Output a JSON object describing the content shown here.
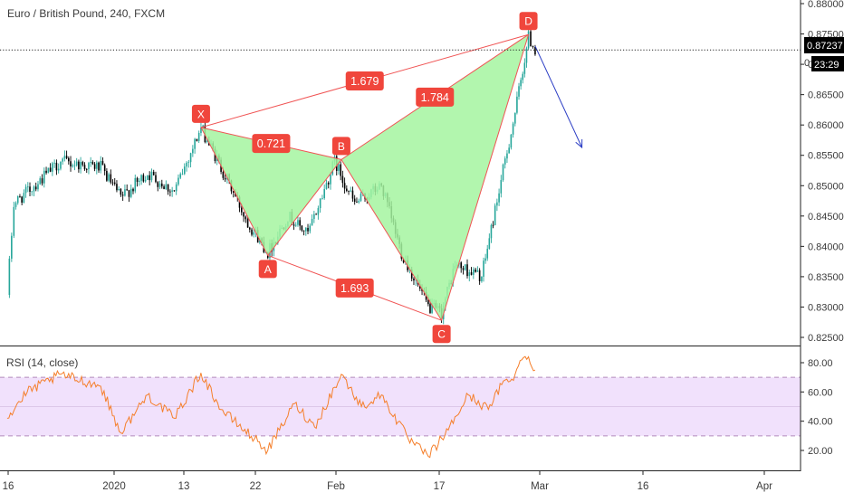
{
  "header": {
    "symbol_title": "Euro / British Pound, 240, FXCM",
    "rsi_title": "RSI (14, close)"
  },
  "price_axis": {
    "ticks": [
      "0.88000",
      "0.87500",
      "0.87000",
      "0.86500",
      "0.86000",
      "0.85500",
      "0.85000",
      "0.84500",
      "0.84000",
      "0.83500",
      "0.83000",
      "0.82500"
    ],
    "last_price": "0.87237",
    "countdown": "23:29",
    "partial_label": "0"
  },
  "rsi_axis": {
    "ticks": [
      "80.00",
      "60.00",
      "40.00",
      "20.00"
    ]
  },
  "time_axis": {
    "ticks": [
      "16",
      "2020",
      "13",
      "22",
      "Feb",
      "17",
      "Mar",
      "16",
      "Apr"
    ]
  },
  "colors": {
    "up": "#26a69a",
    "down": "#000000",
    "pattern_line": "#f05454",
    "pattern_fill": "#a5f5a0",
    "label_bg": "#f0463c",
    "label_text": "#ffffff",
    "rsi_line": "#f57f2b",
    "rsi_band": "#f1e1fc",
    "projection_arrow": "#2a3cc4",
    "axis_text": "#3b3b3b"
  },
  "chart_data": [
    {
      "type": "candlestick",
      "title": "Euro / British Pound, 240, FXCM",
      "ylim": [
        0.8235,
        0.8805
      ],
      "x_ticks": [
        "16",
        "2020",
        "13",
        "22",
        "Feb",
        "17",
        "Mar",
        "16",
        "Apr"
      ],
      "price_path": [
        {
          "x": "Dec 16",
          "y": 0.832
        },
        {
          "x": "Dec 17",
          "y": 0.847
        },
        {
          "x": "Dec 20",
          "y": 0.85
        },
        {
          "x": "Dec 24",
          "y": 0.854
        },
        {
          "x": "Dec 30",
          "y": 0.853
        },
        {
          "x": "Jan 2",
          "y": 0.848
        },
        {
          "x": "Jan 6",
          "y": 0.852
        },
        {
          "x": "Jan 10",
          "y": 0.849
        },
        {
          "x": "Jan 14",
          "y": 0.8595
        },
        {
          "x": "Jan 17",
          "y": 0.853
        },
        {
          "x": "Jan 21",
          "y": 0.844
        },
        {
          "x": "Jan 24",
          "y": 0.839
        },
        {
          "x": "Jan 27",
          "y": 0.845
        },
        {
          "x": "Jan 30",
          "y": 0.842
        },
        {
          "x": "Feb 3",
          "y": 0.854
        },
        {
          "x": "Feb 6",
          "y": 0.847
        },
        {
          "x": "Feb 10",
          "y": 0.85
        },
        {
          "x": "Feb 13",
          "y": 0.839
        },
        {
          "x": "Feb 17",
          "y": 0.83
        },
        {
          "x": "Feb 19",
          "y": 0.829
        },
        {
          "x": "Feb 21",
          "y": 0.837
        },
        {
          "x": "Feb 25",
          "y": 0.835
        },
        {
          "x": "Feb 27",
          "y": 0.846
        },
        {
          "x": "Mar 1",
          "y": 0.862
        },
        {
          "x": "Mar 3",
          "y": 0.8745
        },
        {
          "x": "Mar 4",
          "y": 0.8724
        }
      ],
      "pattern_points": [
        {
          "label": "X",
          "x": "Jan 14",
          "y": 0.8596
        },
        {
          "label": "A",
          "x": "Jan 24",
          "y": 0.8385
        },
        {
          "label": "B",
          "x": "Feb 4",
          "y": 0.8543
        },
        {
          "label": "C",
          "x": "Feb 19",
          "y": 0.8278
        },
        {
          "label": "D",
          "x": "Mar 3",
          "y": 0.8749
        }
      ],
      "ratios": [
        "0.721",
        "1.679",
        "1.693",
        "1.784"
      ],
      "last_price": 0.87237,
      "projection": {
        "from": {
          "x": "Mar 4",
          "y": 0.873
        },
        "to": {
          "x": "Mar 11",
          "y": 0.8563
        }
      }
    },
    {
      "type": "line",
      "title": "RSI (14, close)",
      "ylim": [
        10,
        88
      ],
      "reference_lines": [
        30,
        70
      ],
      "series": [
        {
          "name": "RSI (14, close)",
          "points": [
            {
              "x": "Dec 16",
              "y": 42
            },
            {
              "x": "Dec 19",
              "y": 60
            },
            {
              "x": "Dec 24",
              "y": 72
            },
            {
              "x": "Dec 30",
              "y": 64
            },
            {
              "x": "Jan 2",
              "y": 32
            },
            {
              "x": "Jan 6",
              "y": 58
            },
            {
              "x": "Jan 10",
              "y": 42
            },
            {
              "x": "Jan 14",
              "y": 73
            },
            {
              "x": "Jan 17",
              "y": 48
            },
            {
              "x": "Jan 22",
              "y": 28
            },
            {
              "x": "Jan 24",
              "y": 20
            },
            {
              "x": "Jan 28",
              "y": 52
            },
            {
              "x": "Jan 31",
              "y": 36
            },
            {
              "x": "Feb 4",
              "y": 72
            },
            {
              "x": "Feb 7",
              "y": 50
            },
            {
              "x": "Feb 10",
              "y": 58
            },
            {
              "x": "Feb 14",
              "y": 28
            },
            {
              "x": "Feb 17",
              "y": 16
            },
            {
              "x": "Feb 20",
              "y": 34
            },
            {
              "x": "Feb 23",
              "y": 58
            },
            {
              "x": "Feb 26",
              "y": 48
            },
            {
              "x": "Feb 28",
              "y": 65
            },
            {
              "x": "Mar 1",
              "y": 72
            },
            {
              "x": "Mar 2",
              "y": 82
            },
            {
              "x": "Mar 3",
              "y": 84
            },
            {
              "x": "Mar 4",
              "y": 75
            }
          ]
        }
      ]
    }
  ]
}
